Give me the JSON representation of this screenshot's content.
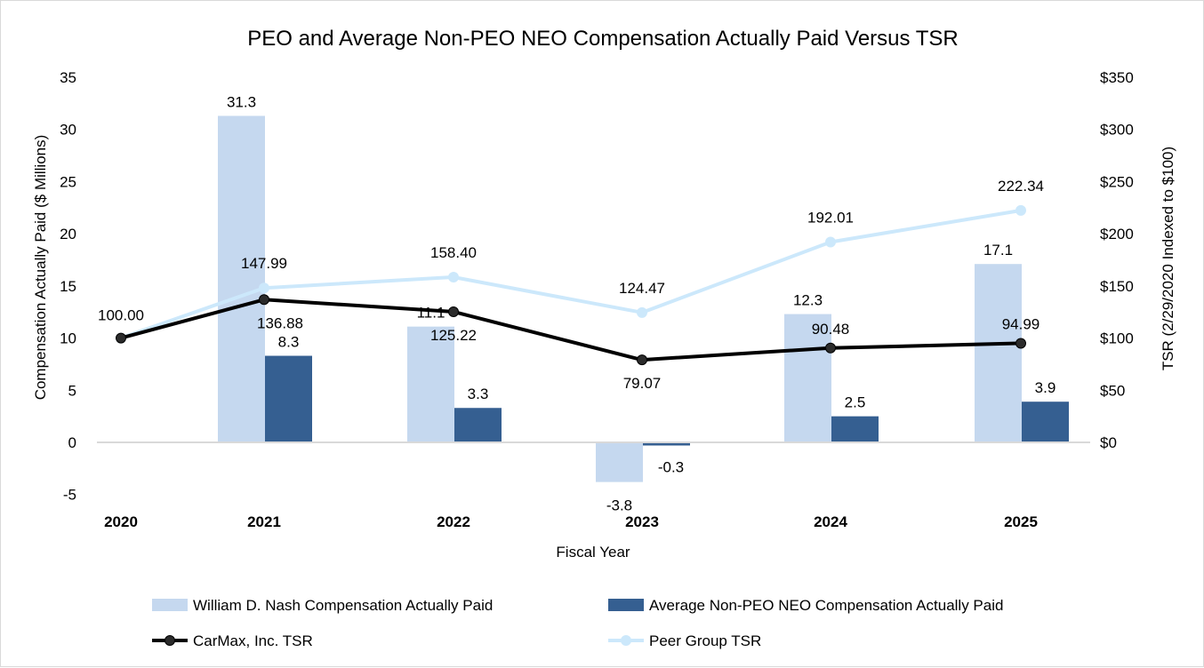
{
  "chart_data": {
    "type": "bar+line",
    "title": "PEO and Average Non-PEO NEO Compensation Actually Paid Versus TSR",
    "xlabel": "Fiscal Year",
    "ylabel": "Compensation Actually Paid ($ Millions)",
    "y2label": "TSR (2/29/2020 Indexed to $100)",
    "categories": [
      "2020",
      "2021",
      "2022",
      "2023",
      "2024",
      "2025"
    ],
    "ylim": [
      -5,
      35
    ],
    "yticks": [
      "-5",
      "0",
      "5",
      "10",
      "15",
      "20",
      "25",
      "30",
      "35"
    ],
    "y2lim": [
      0,
      350
    ],
    "y2ticks": [
      "$0",
      "$50",
      "$100",
      "$150",
      "$200",
      "$250",
      "$300",
      "$350"
    ],
    "grid": false,
    "legend_placement": "bottom",
    "bar_series": [
      {
        "name": "William D. Nash Compensation Actually Paid",
        "color": "#c5d8ef",
        "values": [
          null,
          31.3,
          11.1,
          -3.8,
          12.3,
          17.1
        ],
        "labels": [
          "",
          "31.3",
          "11.1",
          "-3.8",
          "12.3",
          "17.1"
        ]
      },
      {
        "name": "Average Non-PEO NEO Compensation Actually Paid",
        "color": "#355f91",
        "values": [
          null,
          8.3,
          3.3,
          -0.3,
          2.5,
          3.9
        ],
        "labels": [
          "",
          "8.3",
          "3.3",
          "-0.3",
          "2.5",
          "3.9"
        ]
      }
    ],
    "line_series": [
      {
        "name": "CarMax, Inc. TSR",
        "color": "#000000",
        "values": [
          100.0,
          136.88,
          125.22,
          79.07,
          90.48,
          94.99
        ],
        "labels": [
          "",
          "136.88",
          "125.22",
          "79.07",
          "90.48",
          "94.99"
        ]
      },
      {
        "name": "Peer Group TSR",
        "color": "#cce8fb",
        "values": [
          100.0,
          147.99,
          158.4,
          124.47,
          192.01,
          222.34
        ],
        "labels": [
          "100.00",
          "147.99",
          "158.40",
          "124.47",
          "192.01",
          "222.34"
        ]
      }
    ]
  }
}
